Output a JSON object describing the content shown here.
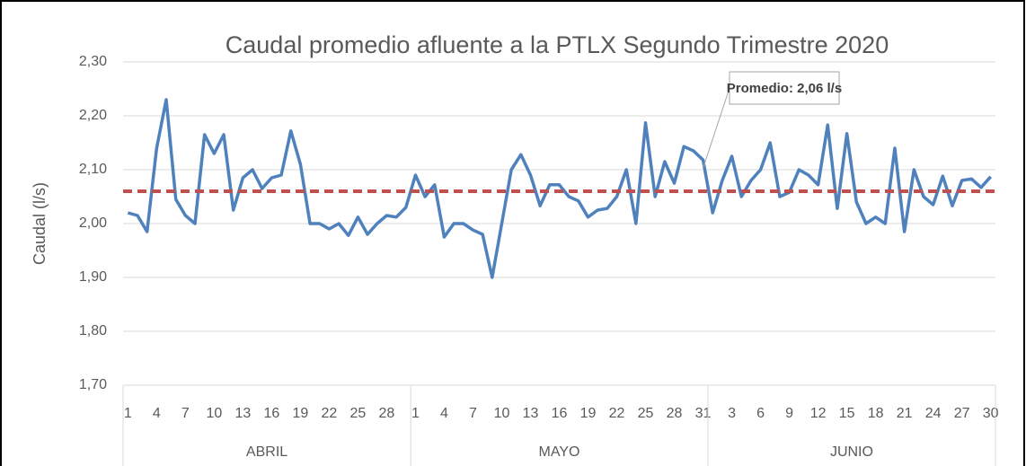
{
  "chart_data": {
    "type": "line",
    "title": "Caudal promedio afluente a la PTLX  Segundo Trimestre 2020",
    "y_label": "Caudal (l/s)",
    "ylim": [
      1.7,
      2.3
    ],
    "yticks": [
      {
        "value": 1.7,
        "label": "1,70"
      },
      {
        "value": 1.8,
        "label": "1,80"
      },
      {
        "value": 1.9,
        "label": "1,90"
      },
      {
        "value": 2.0,
        "label": "2,00"
      },
      {
        "value": 2.1,
        "label": "2,10"
      },
      {
        "value": 2.2,
        "label": "2,20"
      },
      {
        "value": 2.3,
        "label": "2,30"
      }
    ],
    "grid": true,
    "groups": [
      {
        "name": "ABRIL",
        "categories": [
          "1",
          null,
          null,
          "4",
          null,
          null,
          "7",
          null,
          null,
          "10",
          null,
          null,
          "13",
          null,
          null,
          "16",
          null,
          null,
          "19",
          null,
          null,
          "22",
          null,
          null,
          "25",
          null,
          null,
          "28",
          null,
          null
        ]
      },
      {
        "name": "MAYO",
        "categories": [
          "1",
          null,
          null,
          "4",
          null,
          null,
          "7",
          null,
          null,
          "10",
          null,
          null,
          "13",
          null,
          null,
          "16",
          null,
          null,
          "19",
          null,
          null,
          "22",
          null,
          null,
          "25",
          null,
          null,
          "28",
          null,
          null,
          "31"
        ]
      },
      {
        "name": "JUNIO",
        "categories": [
          null,
          null,
          "3",
          null,
          null,
          "6",
          null,
          null,
          "9",
          null,
          null,
          "12",
          null,
          null,
          "15",
          null,
          null,
          "18",
          null,
          null,
          "21",
          null,
          null,
          "24",
          null,
          null,
          "27",
          null,
          null,
          "30"
        ]
      }
    ],
    "series": [
      {
        "color": "#4f81bd",
        "values": [
          2.02,
          2.015,
          1.985,
          2.14,
          2.23,
          2.045,
          2.015,
          2.0,
          2.165,
          2.13,
          2.165,
          2.025,
          2.085,
          2.1,
          2.065,
          2.085,
          2.09,
          2.172,
          2.11,
          2.0,
          2.0,
          1.99,
          2.0,
          1.978,
          2.012,
          1.98,
          2.0,
          2.015,
          2.012,
          2.03,
          2.09,
          2.05,
          2.072,
          1.975,
          2.0,
          2.0,
          1.988,
          1.98,
          1.9,
          2.0,
          2.1,
          2.128,
          2.09,
          2.033,
          2.072,
          2.072,
          2.05,
          2.042,
          2.012,
          2.025,
          2.028,
          2.05,
          2.1,
          2.0,
          2.187,
          2.05,
          2.115,
          2.075,
          2.143,
          2.135,
          2.118,
          2.02,
          2.08,
          2.125,
          2.05,
          2.08,
          2.1,
          2.15,
          2.05,
          2.058,
          2.1,
          2.09,
          2.072,
          2.183,
          2.028,
          2.167,
          2.04,
          2.0,
          2.012,
          2.0,
          2.14,
          1.985,
          2.1,
          2.05,
          2.035,
          2.088,
          2.033,
          2.08,
          2.083,
          2.067,
          2.087
        ]
      }
    ],
    "average": {
      "value": 2.06,
      "color": "#c0504d",
      "label": "Promedio: 2,06 l/s"
    }
  }
}
